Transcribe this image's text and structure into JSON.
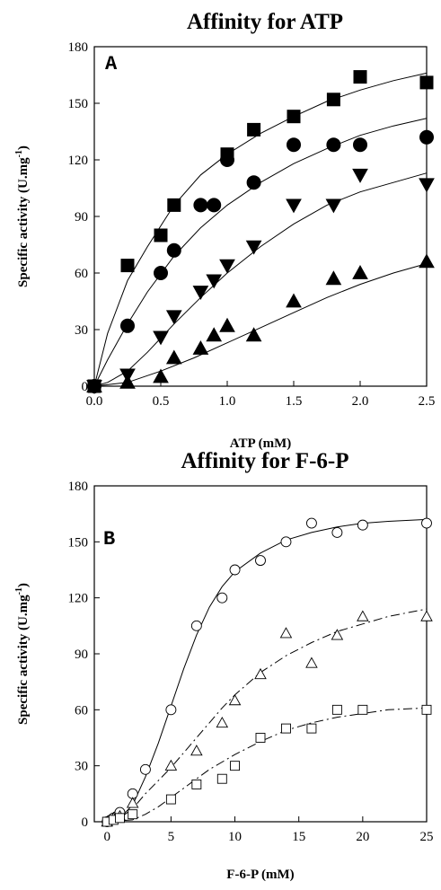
{
  "chart_data": [
    {
      "type": "scatter",
      "panel": "A",
      "title": "Affinity for ATP",
      "xlabel": "ATP (mM)",
      "ylabel": "Specific activity (U.mg",
      "ylabel_sup": "-1",
      "ylabel_close": ")",
      "xlim": [
        0,
        2.5
      ],
      "ylim": [
        0,
        180
      ],
      "xticks": [
        0.0,
        0.5,
        1.0,
        1.5,
        2.0,
        2.5
      ],
      "xtick_labels": [
        "0.0",
        "0.5",
        "1.0",
        "1.5",
        "2.0",
        "2.5"
      ],
      "yticks": [
        0,
        30,
        60,
        90,
        120,
        150,
        180
      ],
      "ytick_labels": [
        "0",
        "30",
        "60",
        "90",
        "120",
        "150",
        "180"
      ],
      "grid": false,
      "series": [
        {
          "marker": "square-filled",
          "line": "solid",
          "x": [
            0,
            0.25,
            0.5,
            0.6,
            1.0,
            1.2,
            1.5,
            1.8,
            2.0,
            2.5
          ],
          "y": [
            0,
            64,
            80,
            96,
            123,
            136,
            143,
            152,
            164,
            161
          ],
          "fit": [
            [
              0,
              0
            ],
            [
              0.1,
              28
            ],
            [
              0.25,
              56
            ],
            [
              0.4,
              74
            ],
            [
              0.6,
              96
            ],
            [
              0.8,
              112
            ],
            [
              1.0,
              123
            ],
            [
              1.25,
              134
            ],
            [
              1.5,
              143
            ],
            [
              1.75,
              151
            ],
            [
              2.0,
              157
            ],
            [
              2.25,
              162
            ],
            [
              2.5,
              166
            ]
          ]
        },
        {
          "marker": "circle-filled",
          "line": "solid",
          "x": [
            0,
            0.25,
            0.5,
            0.6,
            0.8,
            0.9,
            1.0,
            1.2,
            1.5,
            1.8,
            2.0,
            2.5
          ],
          "y": [
            0,
            32,
            60,
            72,
            96,
            96,
            120,
            108,
            128,
            128,
            128,
            132
          ],
          "fit": [
            [
              0,
              0
            ],
            [
              0.1,
              14
            ],
            [
              0.25,
              33
            ],
            [
              0.4,
              50
            ],
            [
              0.6,
              69
            ],
            [
              0.8,
              84
            ],
            [
              1.0,
              96
            ],
            [
              1.25,
              108
            ],
            [
              1.5,
              118
            ],
            [
              1.75,
              126
            ],
            [
              2.0,
              133
            ],
            [
              2.25,
              138
            ],
            [
              2.5,
              142
            ]
          ]
        },
        {
          "marker": "triangle-down-filled",
          "line": "solid",
          "x": [
            0,
            0.25,
            0.5,
            0.6,
            0.8,
            0.9,
            1.0,
            1.2,
            1.5,
            1.8,
            2.0,
            2.5
          ],
          "y": [
            0,
            6,
            26,
            37,
            50,
            56,
            64,
            74,
            96,
            96,
            112,
            107
          ],
          "fit": [
            [
              0,
              0
            ],
            [
              0.1,
              2
            ],
            [
              0.25,
              8
            ],
            [
              0.4,
              18
            ],
            [
              0.6,
              33
            ],
            [
              0.8,
              47
            ],
            [
              1.0,
              60
            ],
            [
              1.25,
              74
            ],
            [
              1.5,
              86
            ],
            [
              1.75,
              96
            ],
            [
              2.0,
              103
            ],
            [
              2.25,
              108
            ],
            [
              2.5,
              113
            ]
          ]
        },
        {
          "marker": "triangle-up-filled",
          "line": "solid",
          "x": [
            0,
            0.25,
            0.5,
            0.6,
            0.8,
            0.9,
            1.0,
            1.2,
            1.5,
            1.8,
            2.0,
            2.5
          ],
          "y": [
            0,
            2,
            5,
            15,
            20,
            27,
            32,
            27,
            45,
            57,
            60,
            66
          ],
          "fit": [
            [
              0,
              0
            ],
            [
              0.25,
              2
            ],
            [
              0.5,
              8
            ],
            [
              0.75,
              15
            ],
            [
              1.0,
              23
            ],
            [
              1.25,
              31
            ],
            [
              1.5,
              39
            ],
            [
              1.75,
              47
            ],
            [
              2.0,
              54
            ],
            [
              2.25,
              60
            ],
            [
              2.5,
              65
            ]
          ]
        }
      ]
    },
    {
      "type": "scatter",
      "panel": "B",
      "title": "Affinity for F-6-P",
      "xlabel": "F-6-P (mM)",
      "ylabel": "Specific activity (U.mg",
      "ylabel_sup": "-1",
      "ylabel_close": ")",
      "xlim": [
        -1,
        25
      ],
      "ylim": [
        0,
        180
      ],
      "xticks": [
        0,
        5,
        10,
        15,
        20,
        25
      ],
      "xtick_labels": [
        "0",
        "5",
        "10",
        "15",
        "20",
        "25"
      ],
      "yticks": [
        0,
        30,
        60,
        90,
        120,
        150,
        180
      ],
      "ytick_labels": [
        "0",
        "30",
        "60",
        "90",
        "120",
        "150",
        "180"
      ],
      "grid": false,
      "series": [
        {
          "marker": "circle-open",
          "line": "solid",
          "x": [
            0,
            0.3,
            0.5,
            0.8,
            1.0,
            2.0,
            3.0,
            5.0,
            7.0,
            9.0,
            10.0,
            12.0,
            14.0,
            16.0,
            18.0,
            20.0,
            25.0
          ],
          "y": [
            0,
            1,
            2,
            3,
            5,
            15,
            28,
            60,
            105,
            120,
            135,
            140,
            150,
            160,
            155,
            159,
            160
          ],
          "fit": [
            [
              0,
              0
            ],
            [
              1,
              2
            ],
            [
              2,
              9
            ],
            [
              3,
              24
            ],
            [
              4,
              42
            ],
            [
              5,
              62
            ],
            [
              6,
              82
            ],
            [
              7,
              100
            ],
            [
              8,
              115
            ],
            [
              9,
              126
            ],
            [
              10,
              134
            ],
            [
              12,
              144
            ],
            [
              14,
              151
            ],
            [
              16,
              155
            ],
            [
              18,
              158
            ],
            [
              20,
              160
            ],
            [
              22,
              161
            ],
            [
              25,
              162
            ]
          ]
        },
        {
          "marker": "triangle-up-open",
          "line": "dashed",
          "x": [
            0,
            0.5,
            1.0,
            2.0,
            5.0,
            7.0,
            9.0,
            10.0,
            12.0,
            14.0,
            16.0,
            18.0,
            20.0,
            25.0
          ],
          "y": [
            0,
            2,
            3,
            10,
            30,
            38,
            53,
            65,
            79,
            101,
            85,
            100,
            110,
            110
          ],
          "fit": [
            [
              0,
              0
            ],
            [
              1,
              2
            ],
            [
              2,
              7
            ],
            [
              3,
              15
            ],
            [
              4,
              22
            ],
            [
              5,
              29
            ],
            [
              6,
              37
            ],
            [
              7,
              45
            ],
            [
              8,
              53
            ],
            [
              9,
              61
            ],
            [
              10,
              68
            ],
            [
              12,
              80
            ],
            [
              14,
              89
            ],
            [
              16,
              96
            ],
            [
              18,
              102
            ],
            [
              20,
              106
            ],
            [
              22,
              110
            ],
            [
              25,
              114
            ]
          ]
        },
        {
          "marker": "square-open",
          "line": "dashed",
          "x": [
            0,
            0.5,
            1.0,
            2.0,
            5.0,
            7.0,
            9.0,
            10.0,
            12.0,
            14.0,
            16.0,
            18.0,
            20.0,
            25.0
          ],
          "y": [
            0,
            1,
            2,
            4,
            12,
            20,
            23,
            30,
            45,
            50,
            50,
            60,
            60,
            60
          ],
          "fit": [
            [
              0,
              0
            ],
            [
              2,
              1
            ],
            [
              3,
              4
            ],
            [
              4,
              8
            ],
            [
              5,
              13
            ],
            [
              6,
              18
            ],
            [
              7,
              23
            ],
            [
              8,
              28
            ],
            [
              9,
              32
            ],
            [
              10,
              36
            ],
            [
              12,
              43
            ],
            [
              14,
              49
            ],
            [
              16,
              53
            ],
            [
              18,
              56
            ],
            [
              20,
              58
            ],
            [
              22,
              60
            ],
            [
              25,
              61
            ]
          ]
        }
      ]
    }
  ]
}
